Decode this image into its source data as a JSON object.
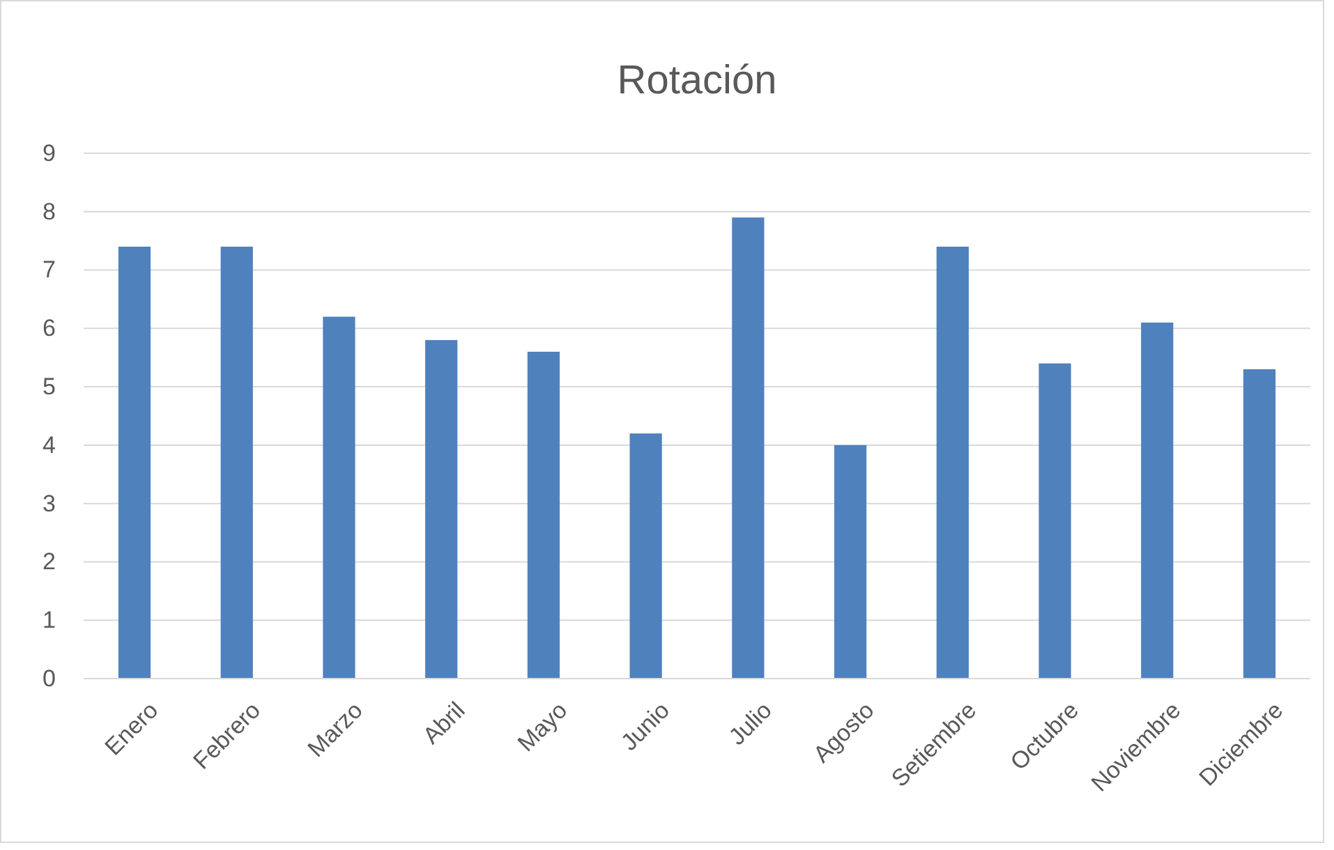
{
  "chart_data": {
    "type": "bar",
    "title": "Rotación",
    "categories": [
      "Enero",
      "Febrero",
      "Marzo",
      "Abril",
      "Mayo",
      "Junio",
      "Julio",
      "Agosto",
      "Setiembre",
      "Octubre",
      "Noviembre",
      "Diciembre"
    ],
    "values": [
      7.4,
      7.4,
      6.2,
      5.8,
      5.6,
      4.2,
      7.9,
      4.0,
      7.4,
      5.4,
      6.1,
      5.3
    ],
    "color": "#4f81bd",
    "ylim": [
      0,
      9
    ],
    "yticks": [
      0,
      1,
      2,
      3,
      4,
      5,
      6,
      7,
      8,
      9
    ],
    "grid": "y"
  }
}
